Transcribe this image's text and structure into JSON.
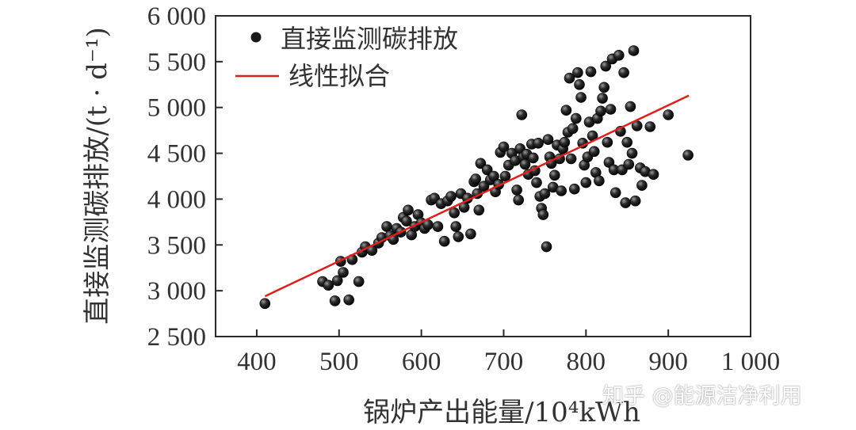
{
  "chart_data": {
    "type": "scatter",
    "xlabel": "锅炉产出能量/10⁴kWh",
    "ylabel": "直接监测碳排放/(t · d⁻¹)",
    "xlim": [
      350,
      1000
    ],
    "ylim": [
      2500,
      6000
    ],
    "xticks": [
      400,
      500,
      600,
      700,
      800,
      900,
      1000
    ],
    "yticks": [
      2500,
      3000,
      3500,
      4000,
      4500,
      5000,
      5500,
      6000
    ],
    "xtick_labels": [
      "400",
      "500",
      "600",
      "700",
      "800",
      "900",
      "1 000"
    ],
    "ytick_labels": [
      "2 500",
      "3 000",
      "3 500",
      "4 000",
      "4 500",
      "5 000",
      "5 500",
      "6 000"
    ],
    "grid": false,
    "legend_position": "top-left",
    "series": [
      {
        "name": "直接监测碳排放",
        "kind": "scatter",
        "color": "#1a1a1a",
        "points": [
          [
            410,
            2860
          ],
          [
            480,
            3100
          ],
          [
            487,
            3060
          ],
          [
            495,
            2890
          ],
          [
            498,
            3110
          ],
          [
            502,
            3320
          ],
          [
            505,
            3200
          ],
          [
            512,
            2900
          ],
          [
            516,
            3340
          ],
          [
            524,
            3100
          ],
          [
            528,
            3420
          ],
          [
            532,
            3480
          ],
          [
            540,
            3440
          ],
          [
            548,
            3520
          ],
          [
            552,
            3580
          ],
          [
            558,
            3700
          ],
          [
            562,
            3600
          ],
          [
            566,
            3560
          ],
          [
            570,
            3680
          ],
          [
            575,
            3640
          ],
          [
            578,
            3800
          ],
          [
            582,
            3760
          ],
          [
            584,
            3880
          ],
          [
            588,
            3610
          ],
          [
            592,
            3700
          ],
          [
            596,
            3830
          ],
          [
            600,
            3740
          ],
          [
            604,
            3680
          ],
          [
            608,
            3720
          ],
          [
            612,
            3990
          ],
          [
            616,
            4010
          ],
          [
            620,
            3700
          ],
          [
            624,
            3950
          ],
          [
            628,
            3540
          ],
          [
            632,
            3980
          ],
          [
            636,
            4030
          ],
          [
            640,
            3850
          ],
          [
            642,
            3700
          ],
          [
            645,
            3590
          ],
          [
            648,
            4060
          ],
          [
            652,
            3910
          ],
          [
            656,
            4010
          ],
          [
            660,
            3620
          ],
          [
            664,
            4190
          ],
          [
            666,
            4220
          ],
          [
            668,
            4060
          ],
          [
            670,
            3880
          ],
          [
            672,
            4390
          ],
          [
            676,
            4140
          ],
          [
            680,
            4320
          ],
          [
            684,
            4210
          ],
          [
            688,
            4250
          ],
          [
            690,
            4080
          ],
          [
            694,
            4160
          ],
          [
            696,
            4510
          ],
          [
            700,
            4570
          ],
          [
            702,
            4250
          ],
          [
            706,
            4370
          ],
          [
            710,
            4500
          ],
          [
            714,
            4420
          ],
          [
            716,
            4100
          ],
          [
            718,
            3990
          ],
          [
            720,
            4550
          ],
          [
            722,
            4920
          ],
          [
            724,
            4460
          ],
          [
            726,
            4380
          ],
          [
            728,
            4490
          ],
          [
            730,
            4270
          ],
          [
            734,
            4600
          ],
          [
            736,
            4450
          ],
          [
            738,
            4310
          ],
          [
            740,
            4180
          ],
          [
            742,
            4610
          ],
          [
            744,
            4030
          ],
          [
            746,
            3900
          ],
          [
            748,
            3830
          ],
          [
            750,
            4060
          ],
          [
            752,
            3480
          ],
          [
            754,
            4650
          ],
          [
            756,
            4460
          ],
          [
            758,
            4390
          ],
          [
            760,
            4130
          ],
          [
            762,
            4260
          ],
          [
            765,
            4590
          ],
          [
            768,
            4440
          ],
          [
            770,
            4090
          ],
          [
            772,
            4550
          ],
          [
            774,
            4620
          ],
          [
            776,
            4970
          ],
          [
            778,
            4730
          ],
          [
            780,
            5320
          ],
          [
            782,
            4440
          ],
          [
            784,
            4770
          ],
          [
            786,
            4110
          ],
          [
            788,
            4880
          ],
          [
            790,
            5380
          ],
          [
            792,
            5250
          ],
          [
            794,
            5110
          ],
          [
            796,
            4610
          ],
          [
            798,
            4370
          ],
          [
            800,
            4180
          ],
          [
            802,
            4460
          ],
          [
            804,
            4840
          ],
          [
            806,
            5390
          ],
          [
            808,
            4690
          ],
          [
            810,
            4520
          ],
          [
            812,
            4290
          ],
          [
            814,
            4880
          ],
          [
            816,
            4200
          ],
          [
            818,
            4960
          ],
          [
            820,
            5100
          ],
          [
            822,
            5220
          ],
          [
            824,
            5450
          ],
          [
            826,
            4620
          ],
          [
            828,
            4400
          ],
          [
            830,
            4980
          ],
          [
            832,
            5530
          ],
          [
            834,
            4320
          ],
          [
            836,
            4070
          ],
          [
            840,
            5570
          ],
          [
            842,
            4740
          ],
          [
            844,
            4320
          ],
          [
            846,
            5380
          ],
          [
            848,
            3960
          ],
          [
            850,
            4620
          ],
          [
            852,
            4380
          ],
          [
            854,
            5010
          ],
          [
            856,
            4500
          ],
          [
            858,
            5620
          ],
          [
            860,
            3980
          ],
          [
            862,
            4800
          ],
          [
            866,
            4340
          ],
          [
            868,
            4150
          ],
          [
            872,
            4300
          ],
          [
            878,
            4790
          ],
          [
            882,
            4270
          ],
          [
            900,
            4920
          ],
          [
            924,
            4480
          ]
        ]
      },
      {
        "name": "线性拟合",
        "kind": "line",
        "color": "#d9211f",
        "x": [
          410,
          925
        ],
        "y": [
          2940,
          5130
        ]
      }
    ]
  },
  "watermark": "知乎 @能源洁净利用"
}
